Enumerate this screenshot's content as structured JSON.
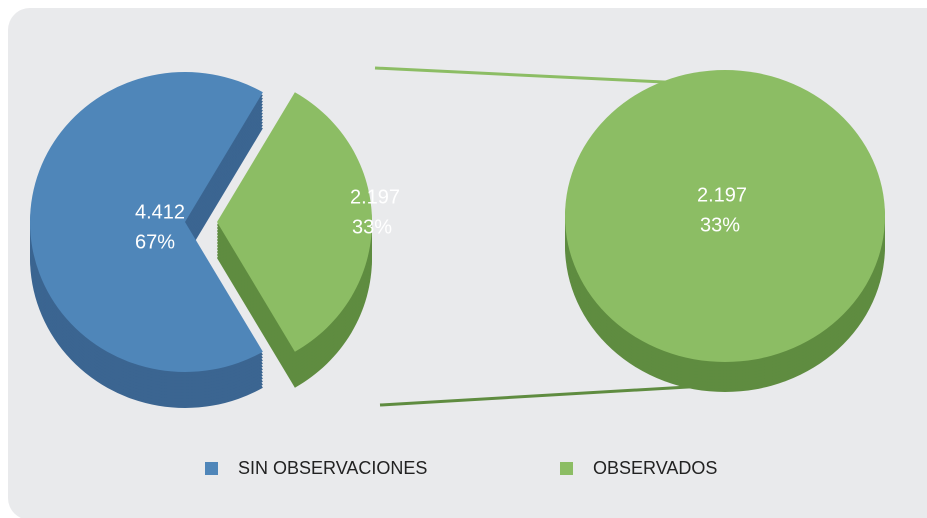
{
  "chart_data": {
    "type": "pie",
    "categories": [
      "SIN OBSERVACIONES",
      "OBSERVADOS"
    ],
    "values": [
      4412,
      2197
    ],
    "value_labels": [
      "4.412",
      "2.197"
    ],
    "percentages": [
      67,
      33
    ],
    "percent_labels": [
      "67%",
      "33%"
    ],
    "colors": [
      "#4f86b9",
      "#8cbd64"
    ],
    "side_colors": [
      "#3b6591",
      "#5f8c40"
    ],
    "legend": "bottom"
  }
}
